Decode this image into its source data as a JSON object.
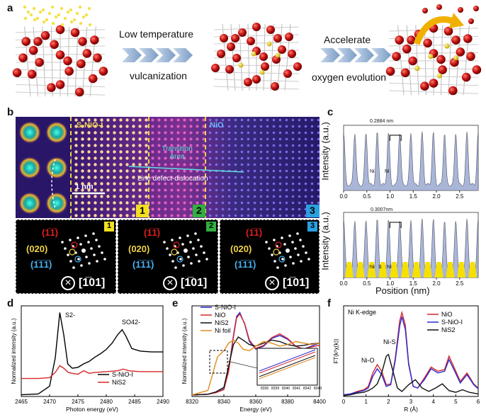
{
  "panel_a": {
    "letter": "a",
    "step1_top": "Low temperature",
    "step1_bottom": "vulcanization",
    "step2_top": "Accelerate",
    "step2_bottom": "oxygen evolution"
  },
  "panel_b": {
    "letter": "b",
    "label_sniol": "S-NiO-I",
    "label_nio": "NiO",
    "label_transition": "Transition Area",
    "label_defect": "Line defect-dislocation",
    "scale_bar": "1 nm",
    "box1": "1",
    "box2": "2",
    "box3": "3",
    "fft": [
      {
        "idx": "1",
        "h1": "(1̅1̅)",
        "h2": "(020)",
        "h3": "(1̅1̅1̅)",
        "zone": "[1̅01]"
      },
      {
        "idx": "2",
        "h1": "(1̅1̅)",
        "h2": "(020)",
        "h3": "(1̅1̅1̅)",
        "zone": "[1̅01]"
      },
      {
        "idx": "3",
        "h1": "(1̅1̅)",
        "h2": "(020)",
        "h3": "(1̅1̅1̅)",
        "zone": "[1̅01]"
      }
    ]
  },
  "panel_c": {
    "letter": "c",
    "ylabel": "Intensity (a.u.)",
    "xlabel": "Position (nm)",
    "top_annot": "0.2884 nm",
    "bottom_annot": "0.3007nm",
    "top_atoms": [
      "Ni",
      "Ni"
    ],
    "bottom_atoms": [
      "Ni",
      "S",
      "Ni"
    ],
    "xticks": [
      "0.0",
      "0.5",
      "1.0",
      "1.5",
      "2.0",
      "2.5"
    ]
  },
  "chart_data": [
    {
      "panel": "d",
      "type": "line",
      "xlabel": "Photon energy (eV)",
      "ylabel": "Normalized intensity (a.u.)",
      "xlim": [
        2465,
        2490
      ],
      "xticks": [
        "2465",
        "2470",
        "2475",
        "2480",
        "2485",
        "2490"
      ],
      "annotations": [
        "S2-",
        "SO42-"
      ],
      "series": [
        {
          "name": "S-NiO-I",
          "color": "#000000",
          "x": [
            2465,
            2468,
            2470,
            2471,
            2471.8,
            2472.5,
            2473.2,
            2474,
            2475,
            2476,
            2477,
            2478,
            2479,
            2480,
            2481,
            2482,
            2482.8,
            2483.5,
            2484.5,
            2486,
            2488,
            2490
          ],
          "y": [
            0.02,
            0.03,
            0.12,
            0.45,
            0.98,
            0.72,
            0.38,
            0.33,
            0.34,
            0.38,
            0.41,
            0.46,
            0.5,
            0.55,
            0.62,
            0.72,
            0.78,
            0.7,
            0.56,
            0.53,
            0.52,
            0.52
          ]
        },
        {
          "name": "NiS2",
          "color": "#d62728",
          "x": [
            2465,
            2468,
            2470,
            2471,
            2471.8,
            2472.5,
            2473.3,
            2474,
            2475,
            2476,
            2477,
            2478,
            2480,
            2482,
            2483,
            2484,
            2486,
            2490
          ],
          "y": [
            0.21,
            0.21,
            0.22,
            0.28,
            0.36,
            0.33,
            0.28,
            0.27,
            0.26,
            0.3,
            0.27,
            0.28,
            0.29,
            0.3,
            0.32,
            0.3,
            0.29,
            0.29
          ]
        }
      ]
    },
    {
      "panel": "e",
      "type": "line",
      "xlabel": "Energy (eV)",
      "ylabel": "Normalized intensity (a.u.)",
      "xlim": [
        8320,
        8400
      ],
      "xticks": [
        "8320",
        "8340",
        "8360",
        "8380",
        "8400"
      ],
      "inset_xticks": [
        "8336",
        "8339",
        "8340",
        "8341",
        "8342",
        "8343"
      ],
      "series": [
        {
          "name": "S-NiO-I",
          "color": "#2a2ad6",
          "x": [
            8320,
            8330,
            8335,
            8340,
            8343,
            8346,
            8348,
            8350,
            8353,
            8356,
            8360,
            8365,
            8370,
            8375,
            8380,
            8385,
            8390,
            8395,
            8400
          ],
          "y": [
            0.02,
            0.03,
            0.05,
            0.1,
            0.35,
            0.8,
            1.05,
            1.1,
            0.95,
            0.72,
            0.62,
            0.66,
            0.76,
            0.8,
            0.75,
            0.66,
            0.62,
            0.66,
            0.7
          ]
        },
        {
          "name": "NiO",
          "color": "#d62728",
          "x": [
            8320,
            8330,
            8335,
            8340,
            8343,
            8346,
            8348,
            8350,
            8353,
            8356,
            8360,
            8365,
            8370,
            8375,
            8380,
            8385,
            8390,
            8395,
            8400
          ],
          "y": [
            0.02,
            0.03,
            0.05,
            0.09,
            0.33,
            0.78,
            1.03,
            1.08,
            0.96,
            0.74,
            0.63,
            0.67,
            0.77,
            0.82,
            0.76,
            0.66,
            0.62,
            0.65,
            0.67
          ]
        },
        {
          "name": "NiS2",
          "color": "#111111",
          "x": [
            8320,
            8330,
            8335,
            8340,
            8343,
            8346,
            8349,
            8352,
            8356,
            8360,
            8365,
            8370,
            8375,
            8380,
            8385,
            8390,
            8395,
            8400
          ],
          "y": [
            0.02,
            0.03,
            0.06,
            0.12,
            0.4,
            0.68,
            0.78,
            0.74,
            0.68,
            0.66,
            0.7,
            0.74,
            0.72,
            0.68,
            0.66,
            0.67,
            0.69,
            0.7
          ]
        },
        {
          "name": "Ni foil",
          "color": "#e08a1e",
          "x": [
            8320,
            8330,
            8333,
            8336,
            8340,
            8343,
            8346,
            8349,
            8352,
            8356,
            8360,
            8365,
            8370,
            8375,
            8380,
            8385,
            8390,
            8395,
            8400
          ],
          "y": [
            0.02,
            0.08,
            0.3,
            0.52,
            0.6,
            0.7,
            0.74,
            0.7,
            0.62,
            0.6,
            0.66,
            0.72,
            0.7,
            0.66,
            0.68,
            0.72,
            0.7,
            0.68,
            0.7
          ]
        }
      ]
    },
    {
      "panel": "f",
      "type": "line",
      "title": "Ni K-edge",
      "xlabel": "R (Å)",
      "ylabel": "FT(k³χ(k))",
      "xlim": [
        0,
        6
      ],
      "xticks": [
        "0",
        "1",
        "2",
        "3",
        "4",
        "5",
        "6"
      ],
      "annotations": [
        "Ni-O",
        "Ni-S"
      ],
      "series": [
        {
          "name": "NiO",
          "color": "#d62728",
          "x": [
            0,
            0.3,
            0.6,
            0.9,
            1.1,
            1.3,
            1.5,
            1.7,
            1.9,
            2.1,
            2.3,
            2.5,
            2.6,
            2.75,
            2.9,
            3.1,
            3.3,
            3.6,
            3.9,
            4.2,
            4.5,
            4.7,
            4.9,
            5.2,
            5.5,
            5.8,
            6.0
          ],
          "y": [
            0.02,
            0.03,
            0.06,
            0.08,
            0.12,
            0.28,
            0.38,
            0.3,
            0.14,
            0.15,
            0.45,
            0.9,
            1.0,
            0.85,
            0.4,
            0.12,
            0.1,
            0.22,
            0.35,
            0.3,
            0.32,
            0.48,
            0.36,
            0.18,
            0.28,
            0.15,
            0.1
          ]
        },
        {
          "name": "S-NiO-I",
          "color": "#2a2ad6",
          "x": [
            0,
            0.3,
            0.6,
            0.9,
            1.1,
            1.3,
            1.5,
            1.7,
            1.9,
            2.1,
            2.3,
            2.5,
            2.6,
            2.75,
            2.9,
            3.1,
            3.3,
            3.6,
            3.9,
            4.2,
            4.5,
            4.7,
            4.9,
            5.2,
            5.5,
            5.8,
            6.0
          ],
          "y": [
            0.02,
            0.03,
            0.05,
            0.07,
            0.1,
            0.24,
            0.33,
            0.26,
            0.12,
            0.14,
            0.42,
            0.84,
            0.95,
            0.8,
            0.38,
            0.12,
            0.1,
            0.2,
            0.33,
            0.28,
            0.3,
            0.44,
            0.33,
            0.16,
            0.26,
            0.14,
            0.09
          ]
        },
        {
          "name": "NiS2",
          "color": "#111111",
          "x": [
            0,
            0.3,
            0.6,
            0.9,
            1.1,
            1.3,
            1.5,
            1.7,
            1.9,
            2.0,
            2.2,
            2.4,
            2.6,
            2.9,
            3.2,
            3.5,
            3.8,
            4.1,
            4.4,
            4.7,
            5.0,
            5.3,
            5.6,
            6.0
          ],
          "y": [
            0.01,
            0.02,
            0.04,
            0.05,
            0.07,
            0.1,
            0.15,
            0.28,
            0.48,
            0.5,
            0.3,
            0.1,
            0.06,
            0.14,
            0.2,
            0.1,
            0.06,
            0.1,
            0.15,
            0.07,
            0.05,
            0.08,
            0.05,
            0.03
          ]
        }
      ]
    }
  ]
}
